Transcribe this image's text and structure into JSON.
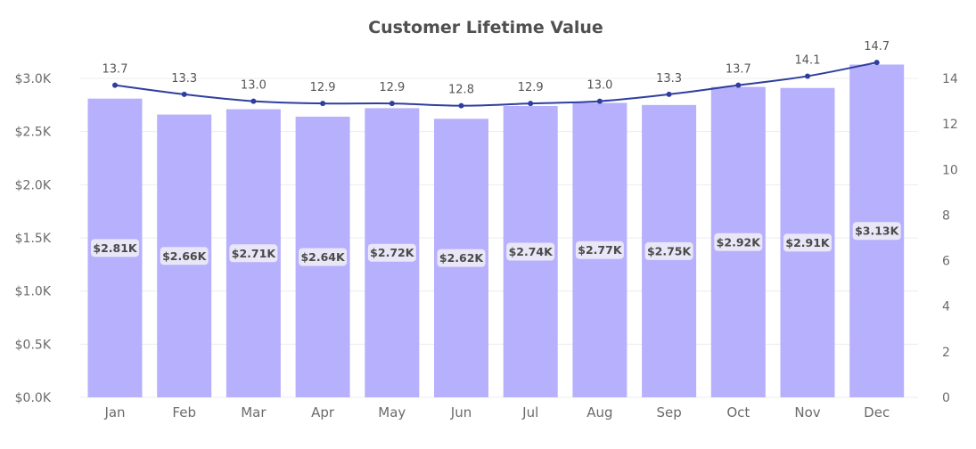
{
  "chart_data": {
    "type": "bar",
    "title": "Customer Lifetime Value",
    "categories": [
      "Jan",
      "Feb",
      "Mar",
      "Apr",
      "May",
      "Jun",
      "Jul",
      "Aug",
      "Sep",
      "Oct",
      "Nov",
      "Dec"
    ],
    "series": [
      {
        "type": "bar",
        "axis": "left",
        "color": "#b7b0fc",
        "values": [
          2810,
          2660,
          2710,
          2640,
          2720,
          2620,
          2740,
          2770,
          2750,
          2920,
          2910,
          3130
        ],
        "labels": [
          "$2.81K",
          "$2.66K",
          "$2.71K",
          "$2.64K",
          "$2.72K",
          "$2.62K",
          "$2.74K",
          "$2.77K",
          "$2.75K",
          "$2.92K",
          "$2.91K",
          "$3.13K"
        ]
      },
      {
        "type": "line",
        "axis": "right",
        "color": "#2f3e9e",
        "values": [
          13.7,
          13.3,
          13.0,
          12.9,
          12.9,
          12.8,
          12.9,
          13.0,
          13.3,
          13.7,
          14.1,
          14.7
        ],
        "labels": [
          "13.7",
          "13.3",
          "13.0",
          "12.9",
          "12.9",
          "12.8",
          "12.9",
          "13.0",
          "13.3",
          "13.7",
          "14.1",
          "14.7"
        ]
      }
    ],
    "y_left": {
      "ylim": [
        0,
        3000
      ],
      "ticks": [
        0,
        500,
        1000,
        1500,
        2000,
        2500,
        3000
      ],
      "tick_labels": [
        "$0.0K",
        "$0.5K",
        "$1.0K",
        "$1.5K",
        "$2.0K",
        "$2.5K",
        "$3.0K"
      ]
    },
    "y_right": {
      "ylim": [
        0,
        14
      ],
      "ticks": [
        0,
        2,
        4,
        6,
        8,
        10,
        12,
        14
      ],
      "tick_labels": [
        "0",
        "2",
        "4",
        "6",
        "8",
        "10",
        "12",
        "14"
      ]
    },
    "grid": true,
    "legend": "none"
  }
}
